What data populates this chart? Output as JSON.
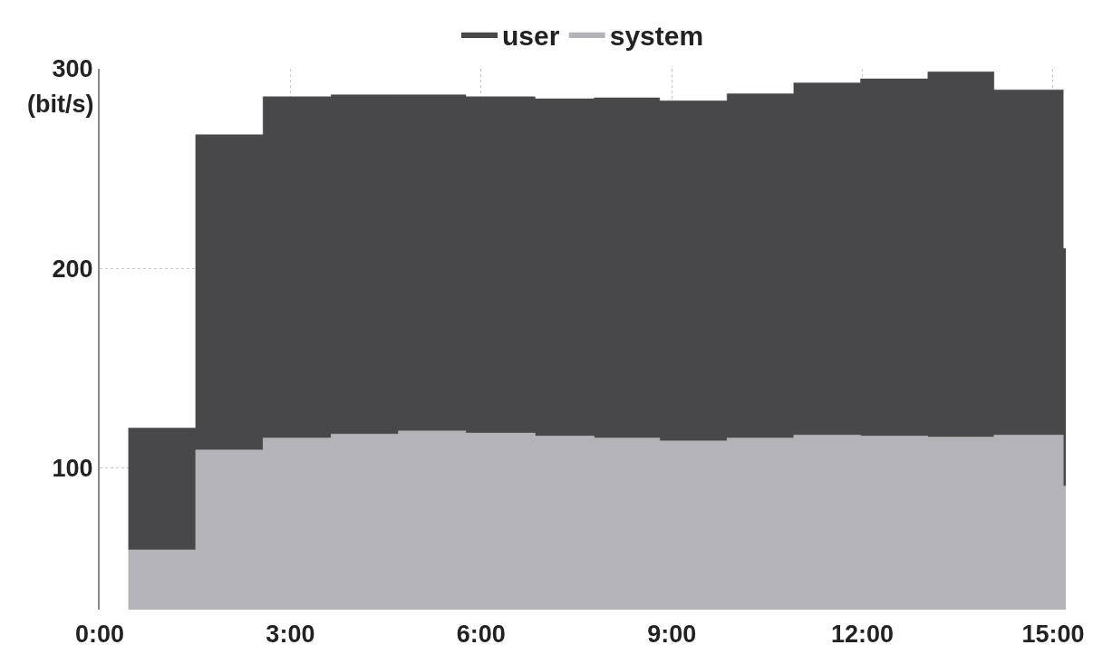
{
  "chart_data": {
    "type": "area",
    "stacked": true,
    "ylabel": "(bit/s)",
    "x": [
      0.45,
      1.51,
      1.51,
      2.57,
      2.57,
      3.64,
      3.64,
      4.7,
      4.7,
      5.76,
      5.76,
      6.85,
      6.85,
      7.78,
      7.78,
      8.81,
      8.81,
      9.87,
      9.87,
      10.92,
      10.92,
      11.97,
      11.97,
      13.03,
      13.03,
      14.07,
      14.07,
      15.16,
      15.16,
      15.2
    ],
    "series": [
      {
        "name": "system",
        "color": "#b4b4b8",
        "values": [
          59,
          59,
          109,
          109,
          115,
          115,
          117,
          117,
          118.5,
          118.5,
          117.5,
          117.5,
          116,
          116,
          115,
          115,
          113.5,
          113.5,
          115,
          115,
          116.5,
          116.5,
          116,
          116,
          115.5,
          115.5,
          116.5,
          116.5,
          91,
          91
        ]
      },
      {
        "name": "user",
        "color": "#48484a",
        "values": [
          61,
          61,
          158,
          158,
          171,
          171,
          170,
          170,
          168.5,
          168.5,
          168.5,
          168.5,
          169,
          169,
          170.5,
          170.5,
          170.5,
          170.5,
          172.5,
          172.5,
          176.5,
          176.5,
          179,
          179,
          183,
          183,
          173,
          173,
          119,
          119
        ]
      }
    ],
    "xlim": [
      0,
      15.2
    ],
    "xticks": [
      {
        "value": 0,
        "label": "0:00"
      },
      {
        "value": 3,
        "label": "3:00"
      },
      {
        "value": 6,
        "label": "6:00"
      },
      {
        "value": 9,
        "label": "9:00"
      },
      {
        "value": 12,
        "label": "12:00"
      },
      {
        "value": 15,
        "label": "15:00"
      }
    ],
    "ylim": [
      29,
      300
    ],
    "yticks": [
      100,
      200,
      300
    ],
    "grid": true,
    "legend": "top"
  }
}
